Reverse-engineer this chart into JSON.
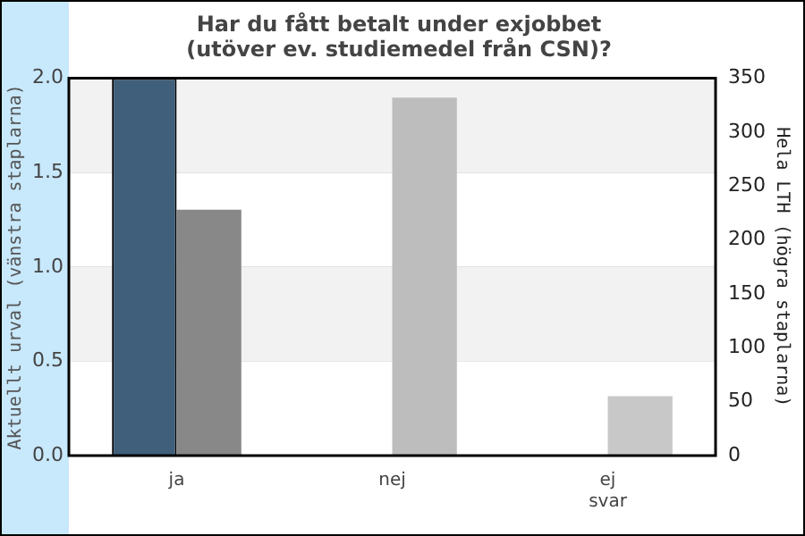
{
  "chart_data": {
    "type": "bar",
    "title": "Har du fått betalt under exjobbet\n(utöver ev. studiemedel från CSN)?",
    "ylabel": "Aktuellt urval (vänstra staplarna)",
    "y2label": "Hela LTH (högra staplarna)",
    "categories": [
      "ja",
      "nej",
      "ej svar"
    ],
    "series": [
      {
        "color": "#3f5f7a",
        "values": [
          2,
          null,
          null
        ]
      },
      {
        "axis": "y2",
        "colors": [
          "#888888",
          "#bdbdbd",
          "#c8c8c8"
        ],
        "values": [
          228,
          332,
          55
        ]
      }
    ],
    "ylim": [
      0,
      2
    ],
    "yticks": [
      {
        "value": 0,
        "label": "0.0"
      },
      {
        "value": 0.5,
        "label": "0.5"
      },
      {
        "value": 1,
        "label": "1.0"
      },
      {
        "value": 1.5,
        "label": "1.5"
      },
      {
        "value": 2,
        "label": "2.0"
      }
    ],
    "y2lim": [
      0,
      350
    ],
    "y2ticks": [
      0,
      50,
      100,
      150,
      200,
      250,
      300,
      350
    ],
    "bands": [
      {
        "axis": "y",
        "from": 0.5,
        "to": 1,
        "color": "#f2f2f2"
      },
      {
        "axis": "y",
        "from": 1.5,
        "to": 2,
        "color": "#f2f2f2"
      }
    ],
    "grid": "y",
    "legend": false
  }
}
